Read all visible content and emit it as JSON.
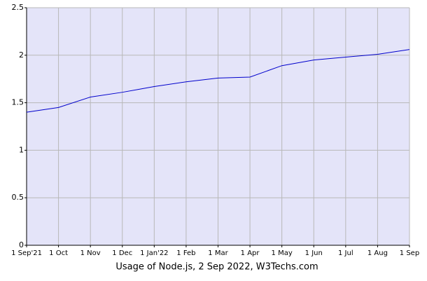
{
  "chart_data": {
    "type": "line",
    "title": "Usage of Node.js, 2 Sep 2022, W3Techs.com",
    "categories": [
      "1 Sep'21",
      "1 Oct",
      "1 Nov",
      "1 Dec",
      "1 Jan'22",
      "1 Feb",
      "1 Mar",
      "1 Apr",
      "1 May",
      "1 Jun",
      "1 Jul",
      "1 Aug",
      "1 Sep"
    ],
    "values": [
      1.4,
      1.45,
      1.56,
      1.61,
      1.67,
      1.72,
      1.76,
      1.77,
      1.89,
      1.95,
      1.98,
      2.01,
      2.06
    ],
    "color": "#0000cc",
    "ylim": [
      0,
      2.5
    ],
    "yticks": [
      0,
      0.5,
      1,
      1.5,
      2,
      2.5
    ],
    "grid": true
  }
}
